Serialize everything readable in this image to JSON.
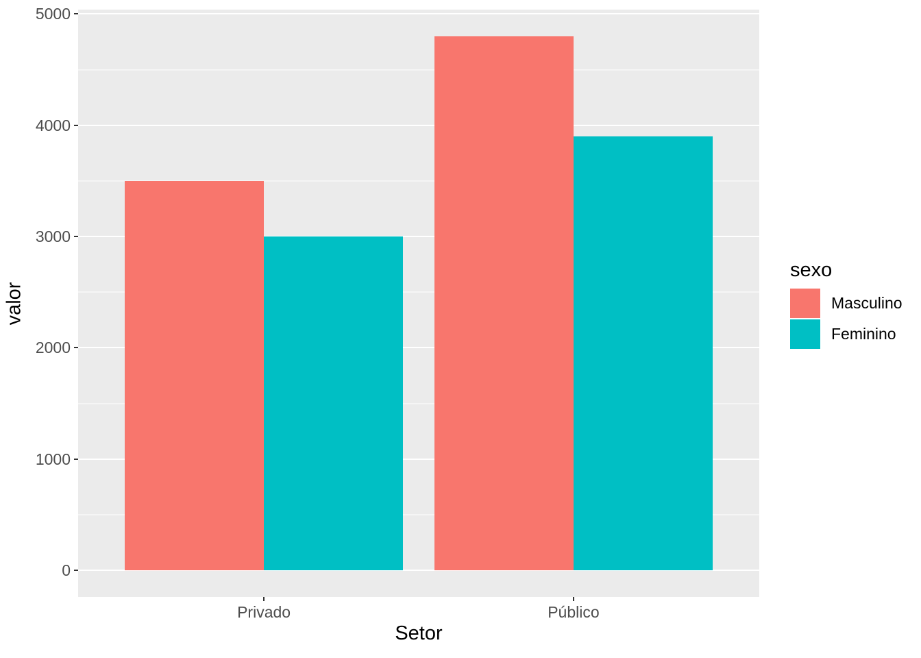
{
  "chart_data": {
    "type": "bar",
    "title": "",
    "xlabel": "Setor",
    "ylabel": "valor",
    "categories": [
      "Privado",
      "Público"
    ],
    "series": [
      {
        "name": "Masculino",
        "color": "#F8766D",
        "values": [
          3500,
          4800
        ]
      },
      {
        "name": "Feminino",
        "color": "#00BFC4",
        "values": [
          3000,
          3900
        ]
      }
    ],
    "ylim": [
      -240,
      5040
    ],
    "yticks": [
      0,
      1000,
      2000,
      3000,
      4000,
      5000
    ],
    "yticks_minor": [
      500,
      1500,
      2500,
      3500,
      4500
    ],
    "bar_group_width": 0.9,
    "grid": true,
    "legend_title": "sexo",
    "legend_position": "right",
    "colors": {
      "panel_bg": "#EBEBEB",
      "gridline": "#FFFFFF",
      "tick_label": "#4D4D4D",
      "tick_mark": "#333333",
      "axis_title": "#000000"
    }
  }
}
